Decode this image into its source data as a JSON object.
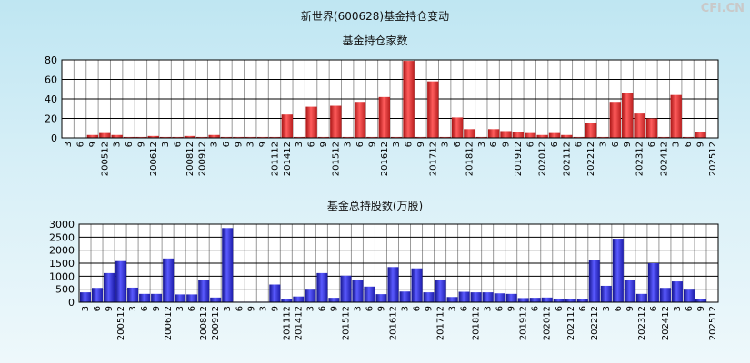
{
  "page_title": "新世界(600628)基金持仓变动",
  "watermark": "CFi.CN",
  "colors": {
    "red": "#e83a3a",
    "blue": "#3030e0"
  },
  "chart_data": [
    {
      "type": "bar",
      "title": "基金持仓家数",
      "ylim": [
        0,
        80
      ],
      "yticks": [
        0,
        20,
        40,
        60,
        80
      ],
      "grid": true,
      "categories": [
        "3",
        "6",
        "9",
        "200512",
        "3",
        "6",
        "9",
        "200612",
        "3",
        "6",
        "200812",
        "200912",
        "3",
        "6",
        "9",
        "3",
        "9",
        "201112",
        "201412",
        "3",
        "6",
        "9",
        "201512",
        "3",
        "6",
        "9",
        "201612",
        "3",
        "6",
        "9",
        "201712",
        "3",
        "6",
        "201812",
        "3",
        "6",
        "9",
        "201912",
        "6",
        "202012",
        "6",
        "202112",
        "6",
        "202212",
        "3",
        "6",
        "9",
        "202312",
        "6",
        "202412",
        "3",
        "6",
        "9",
        "202512"
      ],
      "values": [
        0,
        0,
        3,
        5,
        3,
        1,
        1,
        2,
        1,
        1,
        2,
        1,
        3,
        1,
        1,
        1,
        1,
        1,
        24,
        1,
        32,
        1,
        33,
        1,
        37,
        1,
        42,
        1,
        79,
        1,
        58,
        1,
        21,
        9,
        1,
        9,
        7,
        6,
        5,
        3,
        5,
        3,
        1,
        15,
        1,
        37,
        46,
        25,
        20,
        1,
        44,
        1,
        6,
        0
      ],
      "bar_color": "#e83a3a"
    },
    {
      "type": "bar",
      "title": "基金总持股数(万股)",
      "ylim": [
        0,
        3000
      ],
      "yticks": [
        0,
        500,
        1000,
        1500,
        2000,
        2500,
        3000
      ],
      "grid": true,
      "categories": [
        "3",
        "6",
        "9",
        "200512",
        "3",
        "6",
        "9",
        "200612",
        "3",
        "6",
        "200812",
        "200912",
        "3",
        "6",
        "9",
        "3",
        "9",
        "201112",
        "201412",
        "3",
        "6",
        "9",
        "201512",
        "3",
        "6",
        "9",
        "201612",
        "3",
        "6",
        "9",
        "201712",
        "3",
        "6",
        "201812",
        "3",
        "6",
        "9",
        "201912",
        "6",
        "202012",
        "6",
        "202112",
        "6",
        "202212",
        "3",
        "6",
        "9",
        "202312",
        "6",
        "202412",
        "3",
        "6",
        "9",
        "202512"
      ],
      "values": [
        380,
        550,
        1120,
        1580,
        560,
        320,
        320,
        1680,
        300,
        300,
        840,
        180,
        2850,
        20,
        20,
        20,
        680,
        120,
        220,
        480,
        1120,
        170,
        1020,
        840,
        600,
        310,
        1350,
        410,
        1300,
        380,
        840,
        200,
        400,
        380,
        380,
        340,
        320,
        160,
        170,
        180,
        140,
        120,
        110,
        1620,
        630,
        2440,
        840,
        320,
        1500,
        550,
        800,
        480,
        120,
        0
      ],
      "bar_color": "#3030e0"
    }
  ]
}
